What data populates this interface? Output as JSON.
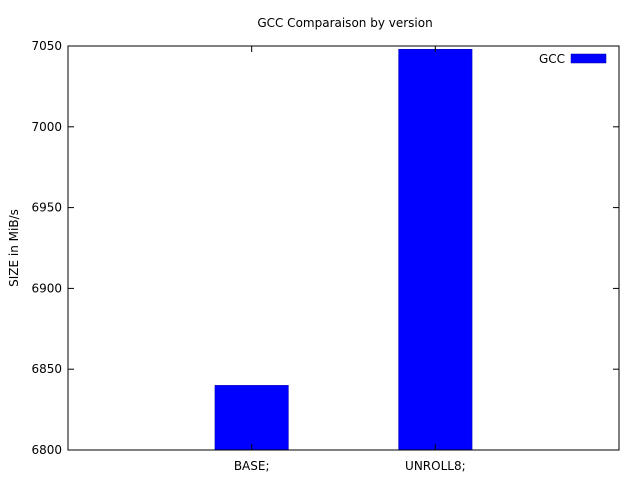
{
  "chart_data": {
    "type": "bar",
    "title": "GCC Comparaison by version",
    "xlabel": "",
    "ylabel": "SIZE in MiB/s",
    "categories": [
      "BASE;",
      "UNROLL8;"
    ],
    "series": [
      {
        "name": "GCC",
        "values": [
          6840,
          7048
        ],
        "color": "#0000ff"
      }
    ],
    "ylim": [
      6800,
      7050
    ],
    "yticks": [
      6800,
      6850,
      6900,
      6950,
      7000,
      7050
    ],
    "xlim": [
      -1,
      2
    ],
    "grid": false,
    "legend_position": "top-right"
  }
}
